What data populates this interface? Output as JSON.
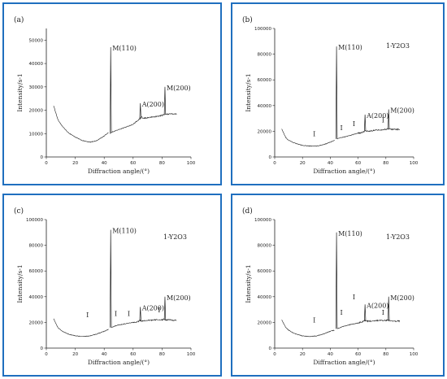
{
  "chart_data": [
    {
      "type": "line",
      "panel_label": "(a)",
      "legend_text": "",
      "xlabel": "Diffraction angle/(°)",
      "ylabel": "Intensity/s-1",
      "xlim": [
        0,
        100
      ],
      "ylim": [
        0,
        55000
      ],
      "xticks": [
        "0",
        "20",
        "40",
        "60",
        "80",
        "100"
      ],
      "yticks": [
        "0",
        "10000",
        "20000",
        "30000",
        "40000",
        "50000"
      ],
      "grid": false,
      "series": [
        {
          "x": [
            5,
            8,
            10,
            12,
            15,
            20,
            25,
            30,
            35,
            40,
            43
          ],
          "y": [
            22000,
            16000,
            14000,
            12500,
            10500,
            8500,
            7000,
            6300,
            7000,
            9000,
            10500
          ]
        },
        {
          "x": [
            44,
            45,
            46,
            50,
            55,
            60,
            63,
            64,
            65,
            66,
            67,
            70,
            75,
            80,
            81,
            82,
            83,
            85,
            90
          ],
          "y": [
            10000,
            10500,
            10800,
            11700,
            12800,
            14000,
            15500,
            16000,
            16500,
            17000,
            16500,
            16800,
            17200,
            17800,
            18000,
            18500,
            18200,
            18500,
            18300
          ]
        }
      ],
      "peaks": [
        {
          "x": 44.5,
          "y": 47000,
          "label": "M(110)"
        },
        {
          "x": 65,
          "y": 23000,
          "label": "A(200)"
        },
        {
          "x": 82,
          "y": 30000,
          "label": "M(200)"
        }
      ],
      "markers": []
    },
    {
      "type": "line",
      "panel_label": "(b)",
      "legend_text": "1-Y2O3",
      "xlabel": "Diffraction angle/(°)",
      "ylabel": "Intensity/s-1",
      "xlim": [
        0,
        100
      ],
      "ylim": [
        0,
        100000
      ],
      "xticks": [
        "0",
        "20",
        "40",
        "60",
        "80",
        "100"
      ],
      "yticks": [
        "0",
        "20000",
        "40000",
        "60000",
        "80000",
        "100000"
      ],
      "grid": false,
      "series": [
        {
          "x": [
            5,
            8,
            10,
            12,
            15,
            20,
            25,
            30,
            35,
            40,
            43
          ],
          "y": [
            22000,
            15000,
            13000,
            12000,
            10500,
            9000,
            8500,
            8500,
            9500,
            11500,
            13000
          ]
        },
        {
          "x": [
            45,
            47,
            50,
            55,
            60,
            63,
            64,
            65,
            66,
            70,
            75,
            80,
            81,
            82,
            85,
            90
          ],
          "y": [
            14000,
            15000,
            15500,
            17000,
            18500,
            19000,
            19500,
            20500,
            20000,
            20500,
            21000,
            21500,
            22000,
            21800,
            21500,
            21500
          ]
        }
      ],
      "peaks": [
        {
          "x": 44.5,
          "y": 86000,
          "label": "M(110)"
        },
        {
          "x": 65,
          "y": 33000,
          "label": "A(200)"
        },
        {
          "x": 82,
          "y": 37000,
          "label": "M(200)"
        }
      ],
      "markers": [
        {
          "x": 28.5,
          "y": 16000,
          "label": "I"
        },
        {
          "x": 48,
          "y": 21000,
          "label": "I"
        },
        {
          "x": 57,
          "y": 24000,
          "label": "I"
        },
        {
          "x": 78,
          "y": 27000,
          "label": "I"
        }
      ]
    },
    {
      "type": "line",
      "panel_label": "(c)",
      "legend_text": "1-Y2O3",
      "xlabel": "Diffraction angle/(°)",
      "ylabel": "Intensity/s-1",
      "xlim": [
        0,
        100
      ],
      "ylim": [
        0,
        100000
      ],
      "xticks": [
        "0",
        "20",
        "40",
        "60",
        "80",
        "100"
      ],
      "yticks": [
        "0",
        "20000",
        "40000",
        "60000",
        "80000",
        "100000"
      ],
      "grid": false,
      "series": [
        {
          "x": [
            5,
            8,
            10,
            12,
            15,
            20,
            25,
            30,
            35,
            40,
            43
          ],
          "y": [
            23000,
            16000,
            14000,
            12500,
            11000,
            9500,
            9000,
            9500,
            11000,
            13000,
            14500
          ]
        },
        {
          "x": [
            45,
            47,
            50,
            55,
            60,
            63,
            64,
            65,
            66,
            70,
            75,
            80,
            81,
            82,
            85,
            90
          ],
          "y": [
            16000,
            17000,
            18000,
            19000,
            20000,
            20500,
            21000,
            21500,
            21000,
            21500,
            22000,
            22000,
            22500,
            22000,
            22000,
            21500
          ]
        }
      ],
      "peaks": [
        {
          "x": 44.5,
          "y": 92000,
          "label": "M(110)"
        },
        {
          "x": 65,
          "y": 32000,
          "label": "A(200)"
        },
        {
          "x": 82,
          "y": 40000,
          "label": "M(200)"
        }
      ],
      "markers": [
        {
          "x": 28.5,
          "y": 24000,
          "label": "I"
        },
        {
          "x": 48,
          "y": 25000,
          "label": "I"
        },
        {
          "x": 57,
          "y": 25000,
          "label": "I"
        },
        {
          "x": 78,
          "y": 28000,
          "label": "I"
        }
      ]
    },
    {
      "type": "line",
      "panel_label": "(d)",
      "legend_text": "1-Y2O3",
      "xlabel": "Diffraction angle/(°)",
      "ylabel": "Intensity/s-1",
      "xlim": [
        0,
        100
      ],
      "ylim": [
        0,
        100000
      ],
      "xticks": [
        "0",
        "20",
        "40",
        "60",
        "80",
        "100"
      ],
      "yticks": [
        "0",
        "20000",
        "40000",
        "60000",
        "80000",
        "100000"
      ],
      "grid": false,
      "series": [
        {
          "x": [
            5,
            8,
            10,
            12,
            15,
            20,
            25,
            30,
            35,
            40,
            43
          ],
          "y": [
            22000,
            16000,
            14000,
            12500,
            11000,
            9500,
            9000,
            9500,
            11000,
            13000,
            14000
          ]
        },
        {
          "x": [
            45,
            47,
            50,
            55,
            60,
            63,
            64,
            65,
            66,
            70,
            75,
            80,
            81,
            82,
            85,
            90
          ],
          "y": [
            15000,
            16000,
            17000,
            18500,
            19500,
            20500,
            21000,
            21500,
            21000,
            21000,
            21500,
            21500,
            22000,
            21500,
            21000,
            21000
          ]
        }
      ],
      "peaks": [
        {
          "x": 44.5,
          "y": 90000,
          "label": "M(110)"
        },
        {
          "x": 65,
          "y": 34000,
          "label": "A(200)"
        },
        {
          "x": 82,
          "y": 40000,
          "label": "M(200)"
        }
      ],
      "markers": [
        {
          "x": 28.5,
          "y": 20000,
          "label": "I"
        },
        {
          "x": 48,
          "y": 26000,
          "label": "I"
        },
        {
          "x": 57,
          "y": 38000,
          "label": "I"
        },
        {
          "x": 78,
          "y": 26000,
          "label": "I"
        }
      ]
    }
  ],
  "colors": {
    "frame": "#1f6fbf",
    "line": "#222222"
  }
}
